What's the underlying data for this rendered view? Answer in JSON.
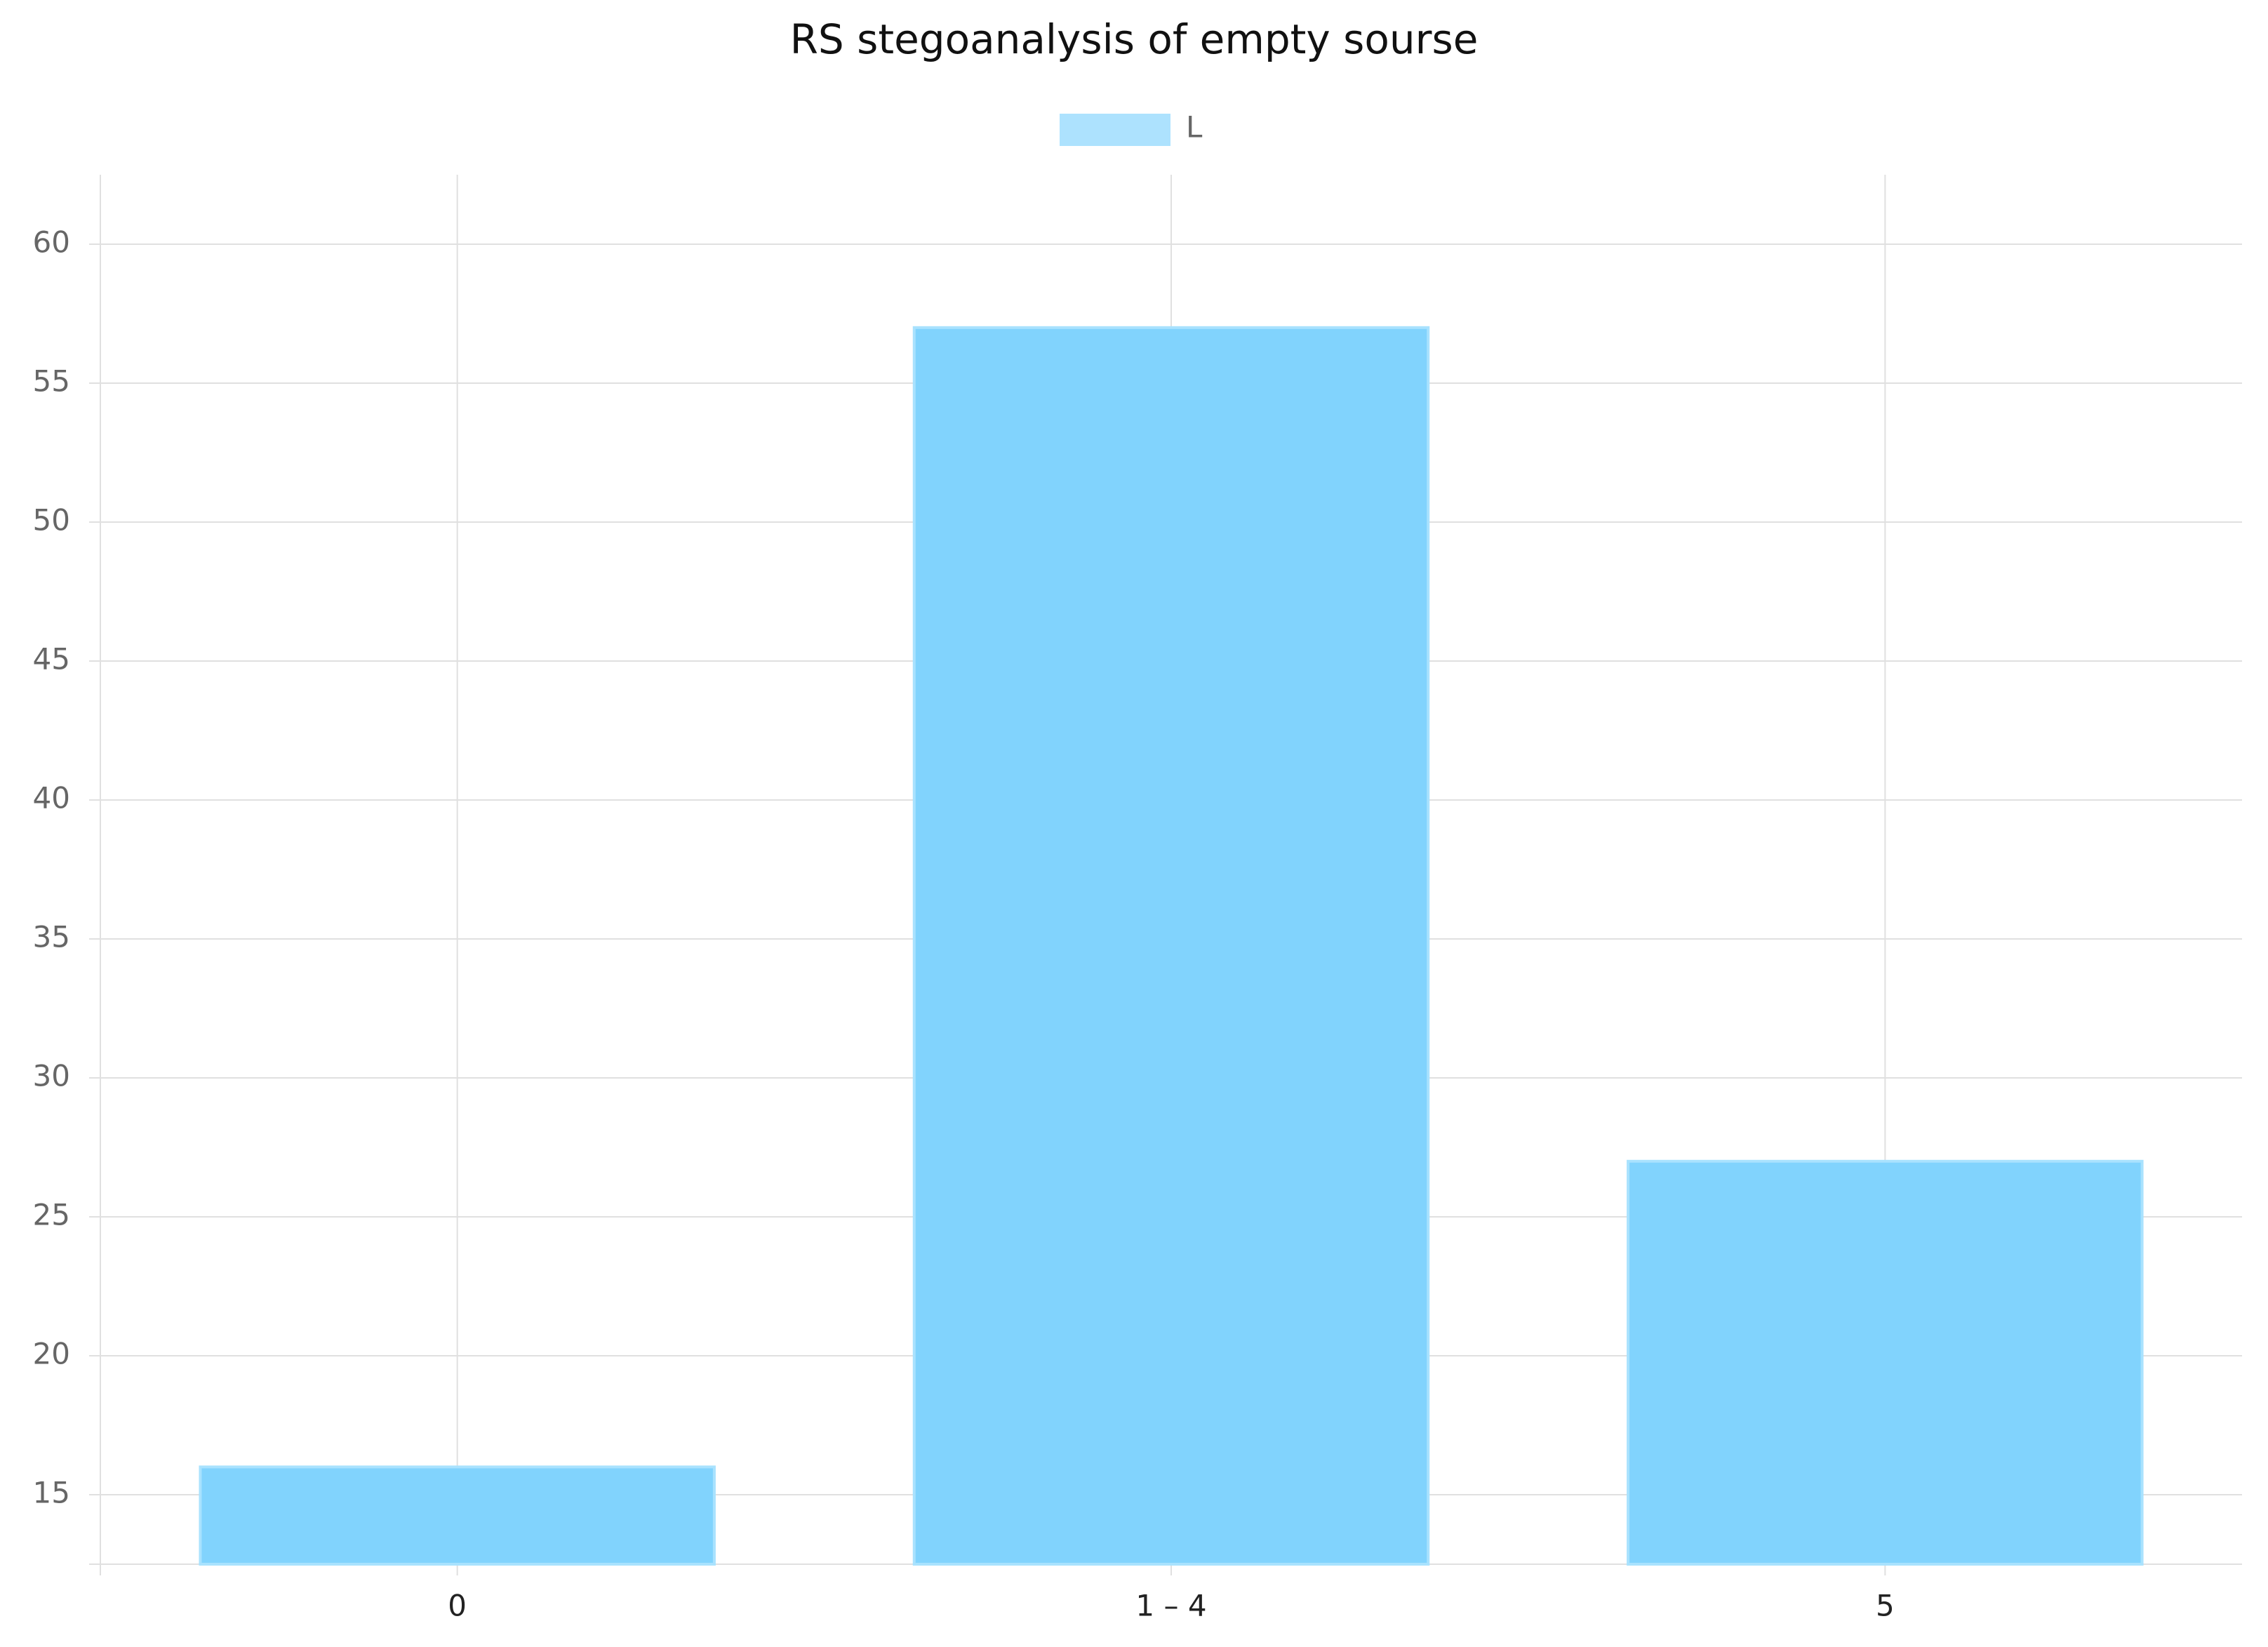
{
  "chart_data": {
    "type": "bar",
    "title": "RS stegoanalysis of empty sourse",
    "categories": [
      "0",
      "1 – 4",
      "5"
    ],
    "series": [
      {
        "name": "L",
        "color": "#81d3fd",
        "values": [
          16,
          57,
          27
        ]
      }
    ],
    "ylim": [
      12.5,
      62.5
    ],
    "yticks": [
      15,
      20,
      25,
      30,
      35,
      40,
      45,
      50,
      55,
      60
    ],
    "grid": true,
    "legend": "top"
  }
}
